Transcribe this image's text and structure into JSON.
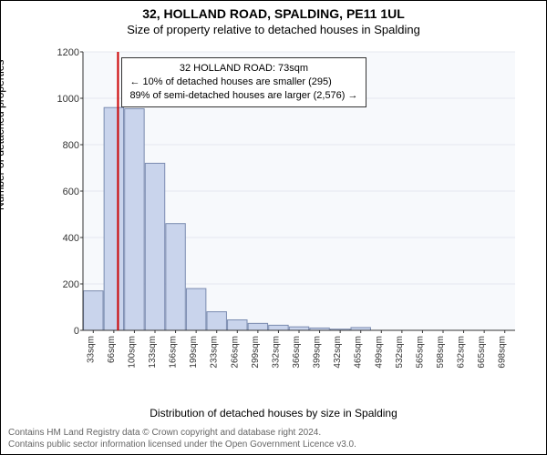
{
  "address": "32, HOLLAND ROAD, SPALDING, PE11 1UL",
  "subtitle": "Size of property relative to detached houses in Spalding",
  "info_box": {
    "line1": "32 HOLLAND ROAD: 73sqm",
    "line2": "← 10% of detached houses are smaller (295)",
    "line3": "89% of semi-detached houses are larger (2,576) →"
  },
  "chart": {
    "type": "histogram",
    "ylabel": "Number of detached properties",
    "xlabel": "Distribution of detached houses by size in Spalding",
    "ylim": [
      0,
      1200
    ],
    "ytick_step": 200,
    "x_categories": [
      "33sqm",
      "66sqm",
      "100sqm",
      "133sqm",
      "166sqm",
      "199sqm",
      "233sqm",
      "266sqm",
      "299sqm",
      "332sqm",
      "366sqm",
      "399sqm",
      "432sqm",
      "465sqm",
      "499sqm",
      "532sqm",
      "565sqm",
      "598sqm",
      "632sqm",
      "665sqm",
      "698sqm"
    ],
    "values": [
      170,
      960,
      955,
      720,
      460,
      180,
      80,
      45,
      30,
      22,
      15,
      10,
      5,
      12,
      0,
      0,
      0,
      0,
      0,
      0,
      0
    ],
    "bar_fill": "#c9d4ec",
    "bar_stroke": "#7a8bb0",
    "plot_bg": "#f7f9fc",
    "grid_color": "#e5e8ef",
    "marker_x_sqm": 73,
    "marker_color": "#cc0000",
    "x_start_sqm": 33,
    "x_step_sqm": 33.25
  },
  "footer": {
    "line1": "Contains HM Land Registry data © Crown copyright and database right 2024.",
    "line2": "Contains public sector information licensed under the Open Government Licence v3.0."
  }
}
